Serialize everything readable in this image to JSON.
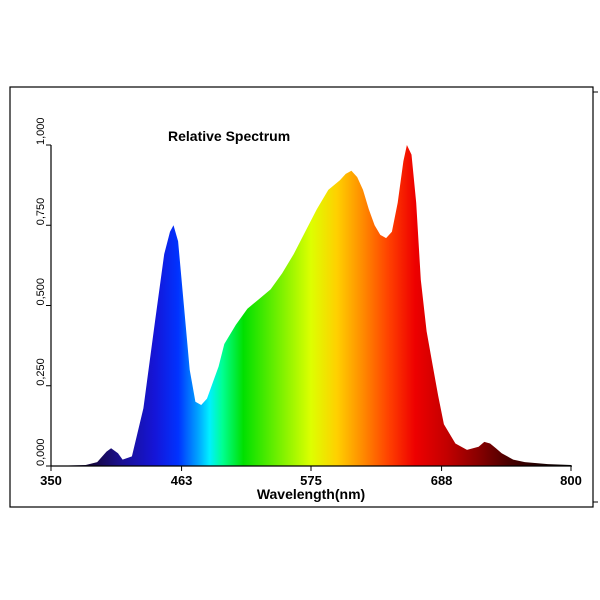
{
  "chart_data": {
    "type": "area",
    "title": "Relative Spectrum",
    "xlabel": "Wavelength(nm)",
    "ylabel": "",
    "xlim": [
      350,
      800
    ],
    "ylim": [
      0,
      1
    ],
    "x_ticks": [
      "350",
      "463",
      "575",
      "688",
      "800"
    ],
    "x_tick_values": [
      350,
      463,
      575,
      688,
      800
    ],
    "y_ticks": [
      "0,000",
      "0,250",
      "0,500",
      "0,750",
      "1,000"
    ],
    "y_tick_values": [
      0,
      0.25,
      0.5,
      0.75,
      1.0
    ],
    "grid": false,
    "legend": "none",
    "fill": "wavelength-colored gradient",
    "series": [
      {
        "x": [
          350,
          380,
          390,
          398,
          402,
          408,
          412,
          420,
          430,
          440,
          448,
          453,
          456,
          460,
          465,
          470,
          475,
          480,
          485,
          490,
          495,
          500,
          510,
          520,
          530,
          540,
          550,
          560,
          570,
          580,
          590,
          600,
          605,
          610,
          615,
          620,
          625,
          630,
          635,
          640,
          645,
          650,
          655,
          658,
          662,
          666,
          670,
          675,
          680,
          685,
          690,
          700,
          710,
          720,
          725,
          730,
          735,
          740,
          750,
          760,
          780,
          800
        ],
        "y": [
          0.0,
          0.003,
          0.012,
          0.045,
          0.055,
          0.04,
          0.02,
          0.03,
          0.18,
          0.45,
          0.66,
          0.73,
          0.75,
          0.7,
          0.5,
          0.3,
          0.2,
          0.19,
          0.21,
          0.26,
          0.31,
          0.38,
          0.44,
          0.49,
          0.52,
          0.55,
          0.6,
          0.66,
          0.73,
          0.8,
          0.86,
          0.89,
          0.91,
          0.92,
          0.9,
          0.86,
          0.8,
          0.75,
          0.72,
          0.71,
          0.73,
          0.82,
          0.95,
          1.0,
          0.97,
          0.82,
          0.58,
          0.42,
          0.32,
          0.22,
          0.13,
          0.07,
          0.05,
          0.06,
          0.075,
          0.07,
          0.055,
          0.04,
          0.02,
          0.012,
          0.006,
          0.003
        ]
      }
    ],
    "colors": {
      "border": "#000000"
    }
  }
}
